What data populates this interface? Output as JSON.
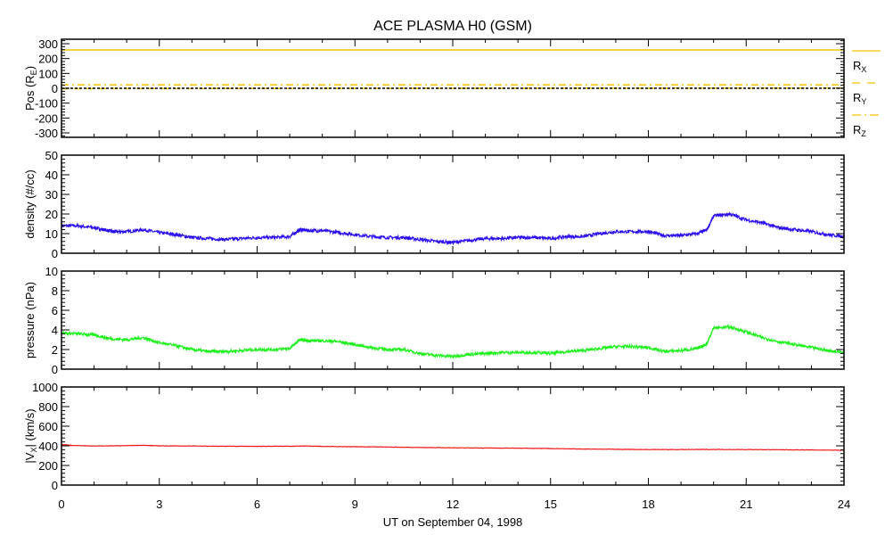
{
  "chart_data": {
    "type": "line",
    "title": "ACE PLASMA H0 (GSM)",
    "xlabel": "UT on September 04, 1998",
    "xlim": [
      0,
      24
    ],
    "xticks": [
      0,
      3,
      6,
      9,
      12,
      15,
      18,
      21,
      24
    ],
    "xtick_labels": [
      "0",
      "3",
      "6",
      "9",
      "12",
      "15",
      "18",
      "21",
      "24"
    ],
    "panels": [
      {
        "ylabel": "Pos (R",
        "ylabel_sub": "E",
        "ylabel_end": ")",
        "ylim": [
          -330,
          330
        ],
        "yticks": [
          -300,
          -200,
          -100,
          0,
          100,
          200,
          300
        ],
        "ytick_labels": [
          "-300",
          "-200",
          "-100",
          "0",
          "100",
          "200",
          "300"
        ],
        "series": [
          {
            "name": "R",
            "sub": "X",
            "color": "#f5c400",
            "style": "solid",
            "x": [
              0,
              24
            ],
            "values": [
              258,
              258
            ]
          },
          {
            "name": "R",
            "sub": "Y",
            "color": "#f5c400",
            "style": "dashed",
            "x": [
              0,
              12,
              24
            ],
            "values": [
              -3,
              0,
              2
            ]
          },
          {
            "name": "R",
            "sub": "Z",
            "color": "#f5c400",
            "style": "dashdot",
            "x": [
              0,
              24
            ],
            "values": [
              23,
              23
            ]
          },
          {
            "name": "zero",
            "color": "#000000",
            "style": "dotted",
            "legend": false,
            "x": [
              0,
              24
            ],
            "values": [
              0,
              0
            ]
          }
        ]
      },
      {
        "ylabel": "density (#/cc)",
        "ylim": [
          0,
          50
        ],
        "yticks": [
          0,
          10,
          20,
          30,
          40,
          50
        ],
        "ytick_labels": [
          "0",
          "10",
          "20",
          "30",
          "40",
          "50"
        ],
        "series": [
          {
            "name": "density",
            "color": "#2a0ff0",
            "style": "solid",
            "noise": 0.8,
            "x": [
              0,
              0.5,
              1,
              1.3,
              1.6,
              2,
              2.5,
              3,
              3.5,
              4,
              4.5,
              5,
              5.5,
              6,
              6.5,
              7,
              7.3,
              7.6,
              8,
              8.5,
              9,
              9.5,
              10,
              10.5,
              11,
              11.5,
              12,
              12.5,
              13,
              13.5,
              14,
              14.5,
              15,
              15.5,
              16,
              16.5,
              17,
              17.5,
              18,
              18.5,
              19,
              19.5,
              19.8,
              20,
              20.5,
              21,
              21.5,
              22,
              22.5,
              23,
              23.5,
              24
            ],
            "values": [
              14,
              14,
              13,
              12,
              11,
              11,
              12,
              10.5,
              9.5,
              8,
              7.5,
              7,
              7.5,
              8,
              8,
              8.5,
              12,
              11.5,
              11.5,
              10.5,
              9.5,
              8.5,
              8,
              8,
              7,
              6,
              5.5,
              6.5,
              7.5,
              7.5,
              8,
              8,
              7.5,
              8.5,
              8.5,
              10,
              11,
              11,
              11,
              9,
              9,
              10,
              12,
              19,
              20,
              17,
              15.5,
              13,
              12,
              11,
              9.5,
              8.5
            ]
          }
        ]
      },
      {
        "ylabel": "pressure (nPa)",
        "ylim": [
          0,
          10
        ],
        "yticks": [
          0,
          2,
          4,
          6,
          8,
          10
        ],
        "ytick_labels": [
          "0",
          "2",
          "4",
          "6",
          "8",
          "10"
        ],
        "series": [
          {
            "name": "pressure",
            "color": "#1ef01e",
            "style": "solid",
            "noise": 0.15,
            "x": [
              0,
              0.5,
              1,
              1.5,
              2,
              2.5,
              3,
              3.5,
              4,
              4.5,
              5,
              5.5,
              6,
              6.5,
              7,
              7.3,
              7.6,
              8,
              8.5,
              9,
              9.5,
              10,
              10.5,
              11,
              11.5,
              12,
              12.5,
              13,
              13.5,
              14,
              14.5,
              15,
              15.5,
              16,
              16.5,
              17,
              17.5,
              18,
              18.5,
              19,
              19.5,
              19.8,
              20,
              20.5,
              21,
              21.5,
              22,
              22.5,
              23,
              23.5,
              24
            ],
            "values": [
              3.7,
              3.6,
              3.5,
              3.1,
              3.0,
              3.2,
              2.7,
              2.4,
              2.0,
              1.8,
              1.8,
              1.9,
              2.0,
              2.0,
              2.1,
              3.0,
              2.9,
              2.9,
              2.8,
              2.5,
              2.2,
              2.0,
              2.0,
              1.6,
              1.4,
              1.3,
              1.5,
              1.6,
              1.7,
              1.7,
              1.7,
              1.6,
              1.8,
              1.9,
              2.1,
              2.3,
              2.3,
              2.2,
              1.8,
              1.9,
              2.1,
              2.6,
              4.2,
              4.3,
              3.8,
              3.2,
              2.8,
              2.5,
              2.2,
              1.9,
              1.7
            ]
          }
        ]
      },
      {
        "ylabel": "|V",
        "ylabel_sub": "X",
        "ylabel_end": "| (km/s)",
        "ylim": [
          0,
          1000
        ],
        "yticks": [
          0,
          200,
          400,
          600,
          800,
          1000
        ],
        "ytick_labels": [
          "0",
          "200",
          "400",
          "600",
          "800",
          "1000"
        ],
        "series": [
          {
            "name": "|Vx|",
            "color": "#f01414",
            "style": "solid",
            "noise": 2,
            "x": [
              0,
              0.3,
              1,
              2,
              2.5,
              3,
              4,
              5,
              6,
              7,
              7.5,
              8,
              9,
              10,
              11,
              12,
              13,
              14,
              15,
              16,
              17,
              18,
              19,
              20,
              21,
              22,
              23,
              24
            ],
            "values": [
              412,
              405,
              398,
              402,
              405,
              400,
              398,
              396,
              395,
              396,
              398,
              394,
              391,
              388,
              383,
              380,
              378,
              376,
              372,
              368,
              365,
              362,
              362,
              363,
              362,
              360,
              358,
              355
            ]
          }
        ]
      }
    ]
  }
}
